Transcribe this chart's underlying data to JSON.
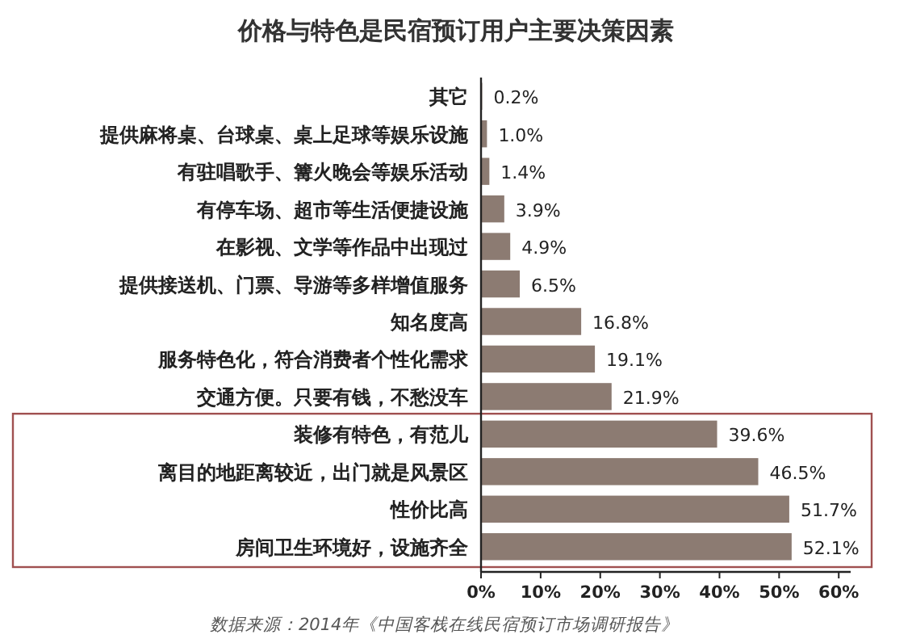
{
  "chart_data": {
    "type": "bar",
    "orientation": "horizontal",
    "title": "价格与特色是民宿预订用户主要决策因素",
    "categories": [
      "其它",
      "提供麻将桌、台球桌、桌上足球等娱乐设施",
      "有驻唱歌手、篝火晚会等娱乐活动",
      "有停车场、超市等生活便捷设施",
      "在影视、文学等作品中出现过",
      "提供接送机、门票、导游等多样增值服务",
      "知名度高",
      "服务特色化，符合消费者个性化需求",
      "交通方便。只要有钱，不愁没车",
      "装修有特色，有范儿",
      "离目的地距离较近，出门就是风景区",
      "性价比高",
      "房间卫生环境好，设施齐全"
    ],
    "values": [
      0.2,
      1.0,
      1.4,
      3.9,
      4.9,
      6.5,
      16.8,
      19.1,
      21.9,
      39.6,
      46.5,
      51.7,
      52.1
    ],
    "value_labels": [
      "0.2%",
      "1.0%",
      "1.4%",
      "3.9%",
      "4.9%",
      "6.5%",
      "16.8%",
      "19.1%",
      "21.9%",
      "39.6%",
      "46.5%",
      "51.7%",
      "52.1%"
    ],
    "color": "#8c7b72",
    "xlim": [
      0,
      62
    ],
    "xticks": [
      {
        "value": 0,
        "label": "0%"
      },
      {
        "value": 10,
        "label": "10%"
      },
      {
        "value": 20,
        "label": "20%"
      },
      {
        "value": 30,
        "label": "30%"
      },
      {
        "value": 40,
        "label": "40%"
      },
      {
        "value": 50,
        "label": "50%"
      },
      {
        "value": 60,
        "label": "60%"
      }
    ],
    "annotations": [
      "数据来源：2014年《中国客栈在线民宿预订市场调研报告》"
    ]
  }
}
